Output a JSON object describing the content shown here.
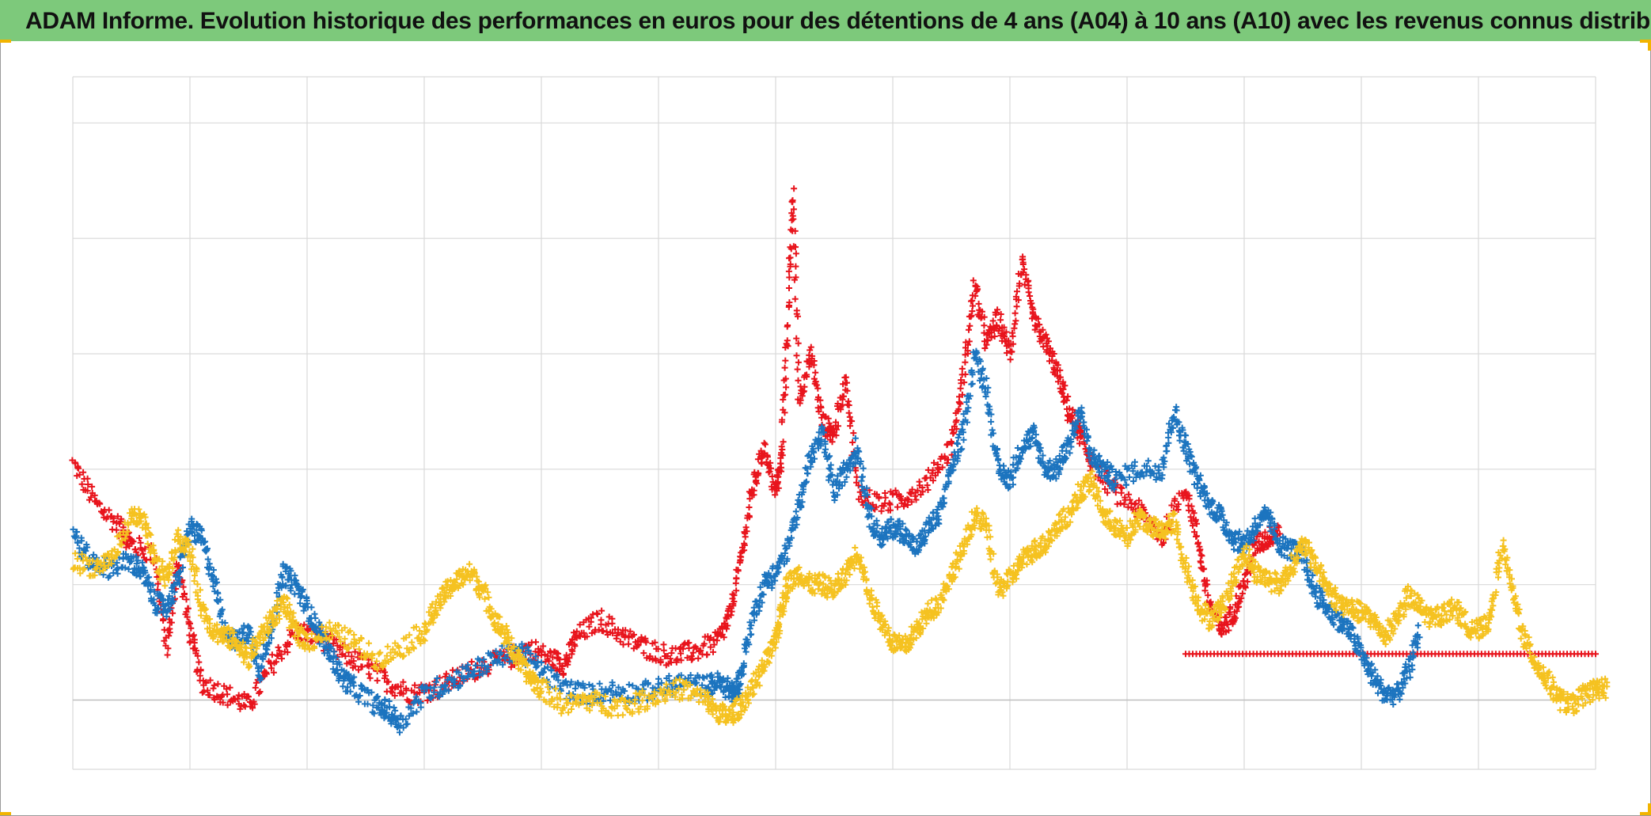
{
  "title": "ADAM Informe. Evolution historique des performances en euros pour des détentions de 4 ans (A04) à 10 ans (A10) avec les revenus connus distribués",
  "colors": {
    "title_bg": "#7dc97b",
    "grid": "#d9d9d9",
    "baseline": "#bfbfbf",
    "corner_marks": "#f2b400"
  },
  "chart_data": {
    "type": "scatter",
    "marker": "plus",
    "title": "ADAM Informe. Evolution historique des performances en euros pour des détentions de 4 ans (A04) à 10 ans (A10) avec les revenus connus distribués",
    "xlabel": "",
    "ylabel": "",
    "xlim": [
      0,
      13
    ],
    "ylim": [
      -0.6,
      5.4
    ],
    "grid": true,
    "legend": "none",
    "baseline_y": 0,
    "series": [
      {
        "color": "#e8141c",
        "points": [
          [
            0.0,
            2.05
          ],
          [
            0.2,
            1.7
          ],
          [
            0.4,
            1.5
          ],
          [
            0.5,
            1.35
          ],
          [
            0.7,
            1.25
          ],
          [
            0.8,
            0.45
          ],
          [
            0.9,
            1.2
          ],
          [
            1.0,
            0.6
          ],
          [
            1.1,
            0.15
          ],
          [
            1.3,
            0.05
          ],
          [
            1.5,
            -0.05
          ],
          [
            1.7,
            0.3
          ],
          [
            1.9,
            0.6
          ],
          [
            2.1,
            0.55
          ],
          [
            2.3,
            0.4
          ],
          [
            2.5,
            0.3
          ],
          [
            2.7,
            0.15
          ],
          [
            2.9,
            0.05
          ],
          [
            3.1,
            0.1
          ],
          [
            3.3,
            0.2
          ],
          [
            3.5,
            0.3
          ],
          [
            3.7,
            0.35
          ],
          [
            3.9,
            0.45
          ],
          [
            4.1,
            0.35
          ],
          [
            4.2,
            0.3
          ],
          [
            4.3,
            0.55
          ],
          [
            4.5,
            0.7
          ],
          [
            4.7,
            0.55
          ],
          [
            4.9,
            0.45
          ],
          [
            5.1,
            0.38
          ],
          [
            5.3,
            0.42
          ],
          [
            5.5,
            0.5
          ],
          [
            5.6,
            0.7
          ],
          [
            5.7,
            1.2
          ],
          [
            5.8,
            1.8
          ],
          [
            5.9,
            2.2
          ],
          [
            6.0,
            1.8
          ],
          [
            6.05,
            2.1
          ],
          [
            6.1,
            3.2
          ],
          [
            6.15,
            4.4
          ],
          [
            6.2,
            2.6
          ],
          [
            6.3,
            3.0
          ],
          [
            6.4,
            2.4
          ],
          [
            6.5,
            2.3
          ],
          [
            6.6,
            2.8
          ],
          [
            6.7,
            1.8
          ],
          [
            6.9,
            1.7
          ],
          [
            7.1,
            1.75
          ],
          [
            7.3,
            1.9
          ],
          [
            7.5,
            2.2
          ],
          [
            7.6,
            2.8
          ],
          [
            7.7,
            3.6
          ],
          [
            7.8,
            3.1
          ],
          [
            7.9,
            3.3
          ],
          [
            8.0,
            3.0
          ],
          [
            8.1,
            3.8
          ],
          [
            8.2,
            3.3
          ],
          [
            8.3,
            3.1
          ],
          [
            8.4,
            2.85
          ],
          [
            8.5,
            2.5
          ],
          [
            8.6,
            2.3
          ],
          [
            8.7,
            2.05
          ],
          [
            8.9,
            1.8
          ],
          [
            9.1,
            1.65
          ],
          [
            9.3,
            1.4
          ],
          [
            9.5,
            1.85
          ],
          [
            9.6,
            1.4
          ],
          [
            9.7,
            0.85
          ],
          [
            9.8,
            0.6
          ],
          [
            9.9,
            0.75
          ],
          [
            10.0,
            1.0
          ],
          [
            10.1,
            1.35
          ],
          [
            10.2,
            1.4
          ],
          [
            10.3,
            1.5
          ]
        ],
        "flat": {
          "x_start": 9.5,
          "x_end": 13.0,
          "y": 0.4
        }
      },
      {
        "color": "#1c74bf",
        "points": [
          [
            0.0,
            1.45
          ],
          [
            0.15,
            1.2
          ],
          [
            0.3,
            1.15
          ],
          [
            0.5,
            1.2
          ],
          [
            0.6,
            1.1
          ],
          [
            0.7,
            0.85
          ],
          [
            0.8,
            0.8
          ],
          [
            0.9,
            1.05
          ],
          [
            1.0,
            1.5
          ],
          [
            1.1,
            1.4
          ],
          [
            1.2,
            1.05
          ],
          [
            1.3,
            0.6
          ],
          [
            1.4,
            0.5
          ],
          [
            1.5,
            0.6
          ],
          [
            1.6,
            0.25
          ],
          [
            1.7,
            0.65
          ],
          [
            1.8,
            1.1
          ],
          [
            1.9,
            1.0
          ],
          [
            2.0,
            0.8
          ],
          [
            2.1,
            0.6
          ],
          [
            2.2,
            0.4
          ],
          [
            2.3,
            0.2
          ],
          [
            2.4,
            0.1
          ],
          [
            2.6,
            -0.05
          ],
          [
            2.7,
            -0.1
          ],
          [
            2.8,
            -0.2
          ],
          [
            3.0,
            0.05
          ],
          [
            3.2,
            0.15
          ],
          [
            3.4,
            0.25
          ],
          [
            3.6,
            0.35
          ],
          [
            3.8,
            0.45
          ],
          [
            4.0,
            0.25
          ],
          [
            4.2,
            0.1
          ],
          [
            4.4,
            0.05
          ],
          [
            4.6,
            0.08
          ],
          [
            4.8,
            0.06
          ],
          [
            5.0,
            0.1
          ],
          [
            5.2,
            0.15
          ],
          [
            5.4,
            0.12
          ],
          [
            5.5,
            0.15
          ],
          [
            5.6,
            0.1
          ],
          [
            5.65,
            0.05
          ],
          [
            5.7,
            0.2
          ],
          [
            5.8,
            0.7
          ],
          [
            5.9,
            1.0
          ],
          [
            6.0,
            1.1
          ],
          [
            6.1,
            1.3
          ],
          [
            6.2,
            1.7
          ],
          [
            6.3,
            2.1
          ],
          [
            6.4,
            2.3
          ],
          [
            6.5,
            1.8
          ],
          [
            6.6,
            2.0
          ],
          [
            6.7,
            2.2
          ],
          [
            6.8,
            1.6
          ],
          [
            6.9,
            1.4
          ],
          [
            7.0,
            1.5
          ],
          [
            7.1,
            1.45
          ],
          [
            7.2,
            1.3
          ],
          [
            7.3,
            1.5
          ],
          [
            7.4,
            1.6
          ],
          [
            7.5,
            2.0
          ],
          [
            7.6,
            2.3
          ],
          [
            7.7,
            3.0
          ],
          [
            7.8,
            2.7
          ],
          [
            7.9,
            2.0
          ],
          [
            8.0,
            1.9
          ],
          [
            8.1,
            2.2
          ],
          [
            8.2,
            2.3
          ],
          [
            8.3,
            2.0
          ],
          [
            8.4,
            2.0
          ],
          [
            8.5,
            2.2
          ],
          [
            8.6,
            2.5
          ],
          [
            8.7,
            2.1
          ],
          [
            8.8,
            2.0
          ],
          [
            8.9,
            1.9
          ],
          [
            9.1,
            2.0
          ],
          [
            9.3,
            2.0
          ],
          [
            9.4,
            2.5
          ],
          [
            9.5,
            2.2
          ],
          [
            9.6,
            1.9
          ],
          [
            9.7,
            1.7
          ],
          [
            9.8,
            1.6
          ],
          [
            9.9,
            1.4
          ],
          [
            10.0,
            1.35
          ],
          [
            10.1,
            1.5
          ],
          [
            10.2,
            1.6
          ],
          [
            10.3,
            1.35
          ],
          [
            10.4,
            1.3
          ],
          [
            10.5,
            1.25
          ],
          [
            10.6,
            0.95
          ],
          [
            10.7,
            0.8
          ],
          [
            10.8,
            0.7
          ],
          [
            10.9,
            0.6
          ],
          [
            11.0,
            0.4
          ],
          [
            11.1,
            0.2
          ],
          [
            11.2,
            0.05
          ],
          [
            11.3,
            0.05
          ],
          [
            11.4,
            0.25
          ],
          [
            11.5,
            0.6
          ]
        ]
      },
      {
        "color": "#f5c220",
        "points": [
          [
            0.0,
            1.2
          ],
          [
            0.2,
            1.15
          ],
          [
            0.35,
            1.25
          ],
          [
            0.5,
            1.6
          ],
          [
            0.6,
            1.55
          ],
          [
            0.7,
            1.2
          ],
          [
            0.8,
            1.05
          ],
          [
            0.9,
            1.4
          ],
          [
            1.0,
            1.3
          ],
          [
            1.1,
            0.8
          ],
          [
            1.2,
            0.6
          ],
          [
            1.3,
            0.55
          ],
          [
            1.4,
            0.5
          ],
          [
            1.5,
            0.35
          ],
          [
            1.6,
            0.55
          ],
          [
            1.7,
            0.7
          ],
          [
            1.8,
            0.85
          ],
          [
            1.9,
            0.6
          ],
          [
            2.0,
            0.5
          ],
          [
            2.2,
            0.6
          ],
          [
            2.4,
            0.5
          ],
          [
            2.6,
            0.35
          ],
          [
            2.8,
            0.45
          ],
          [
            3.0,
            0.6
          ],
          [
            3.1,
            0.8
          ],
          [
            3.2,
            0.95
          ],
          [
            3.3,
            1.05
          ],
          [
            3.4,
            1.1
          ],
          [
            3.5,
            0.95
          ],
          [
            3.6,
            0.7
          ],
          [
            3.7,
            0.55
          ],
          [
            3.8,
            0.35
          ],
          [
            3.9,
            0.2
          ],
          [
            4.0,
            0.1
          ],
          [
            4.2,
            -0.05
          ],
          [
            4.4,
            0.0
          ],
          [
            4.6,
            -0.05
          ],
          [
            4.8,
            -0.03
          ],
          [
            5.0,
            0.05
          ],
          [
            5.2,
            0.1
          ],
          [
            5.4,
            0.0
          ],
          [
            5.5,
            -0.1
          ],
          [
            5.6,
            -0.15
          ],
          [
            5.7,
            -0.05
          ],
          [
            5.8,
            0.1
          ],
          [
            5.9,
            0.3
          ],
          [
            6.0,
            0.5
          ],
          [
            6.05,
            0.8
          ],
          [
            6.1,
            1.0
          ],
          [
            6.2,
            1.1
          ],
          [
            6.3,
            1.0
          ],
          [
            6.4,
            1.0
          ],
          [
            6.5,
            0.95
          ],
          [
            6.6,
            1.1
          ],
          [
            6.7,
            1.3
          ],
          [
            6.8,
            0.9
          ],
          [
            6.9,
            0.7
          ],
          [
            7.0,
            0.5
          ],
          [
            7.1,
            0.45
          ],
          [
            7.2,
            0.6
          ],
          [
            7.3,
            0.75
          ],
          [
            7.4,
            0.85
          ],
          [
            7.5,
            1.1
          ],
          [
            7.6,
            1.3
          ],
          [
            7.7,
            1.6
          ],
          [
            7.8,
            1.5
          ],
          [
            7.9,
            0.95
          ],
          [
            8.0,
            1.05
          ],
          [
            8.1,
            1.2
          ],
          [
            8.2,
            1.3
          ],
          [
            8.3,
            1.35
          ],
          [
            8.4,
            1.5
          ],
          [
            8.5,
            1.6
          ],
          [
            8.6,
            1.8
          ],
          [
            8.7,
            1.9
          ],
          [
            8.8,
            1.6
          ],
          [
            8.9,
            1.5
          ],
          [
            9.0,
            1.4
          ],
          [
            9.1,
            1.6
          ],
          [
            9.2,
            1.5
          ],
          [
            9.3,
            1.45
          ],
          [
            9.4,
            1.55
          ],
          [
            9.5,
            1.15
          ],
          [
            9.6,
            0.85
          ],
          [
            9.7,
            0.7
          ],
          [
            9.8,
            0.8
          ],
          [
            9.9,
            1.0
          ],
          [
            10.0,
            1.3
          ],
          [
            10.1,
            1.1
          ],
          [
            10.2,
            1.05
          ],
          [
            10.3,
            1.0
          ],
          [
            10.4,
            1.15
          ],
          [
            10.5,
            1.35
          ],
          [
            10.6,
            1.2
          ],
          [
            10.7,
            1.0
          ],
          [
            10.8,
            0.85
          ],
          [
            10.9,
            0.8
          ],
          [
            11.0,
            0.75
          ],
          [
            11.1,
            0.7
          ],
          [
            11.2,
            0.55
          ],
          [
            11.3,
            0.7
          ],
          [
            11.4,
            0.9
          ],
          [
            11.5,
            0.8
          ],
          [
            11.6,
            0.7
          ],
          [
            11.7,
            0.75
          ],
          [
            11.8,
            0.8
          ],
          [
            11.9,
            0.65
          ],
          [
            12.0,
            0.6
          ],
          [
            12.1,
            0.7
          ],
          [
            12.2,
            1.35
          ],
          [
            12.3,
            0.9
          ],
          [
            12.4,
            0.5
          ],
          [
            12.5,
            0.3
          ],
          [
            12.6,
            0.15
          ],
          [
            12.7,
            0.0
          ],
          [
            12.8,
            -0.05
          ],
          [
            12.9,
            0.05
          ],
          [
            13.0,
            0.1
          ],
          [
            13.1,
            0.1
          ]
        ]
      }
    ]
  }
}
